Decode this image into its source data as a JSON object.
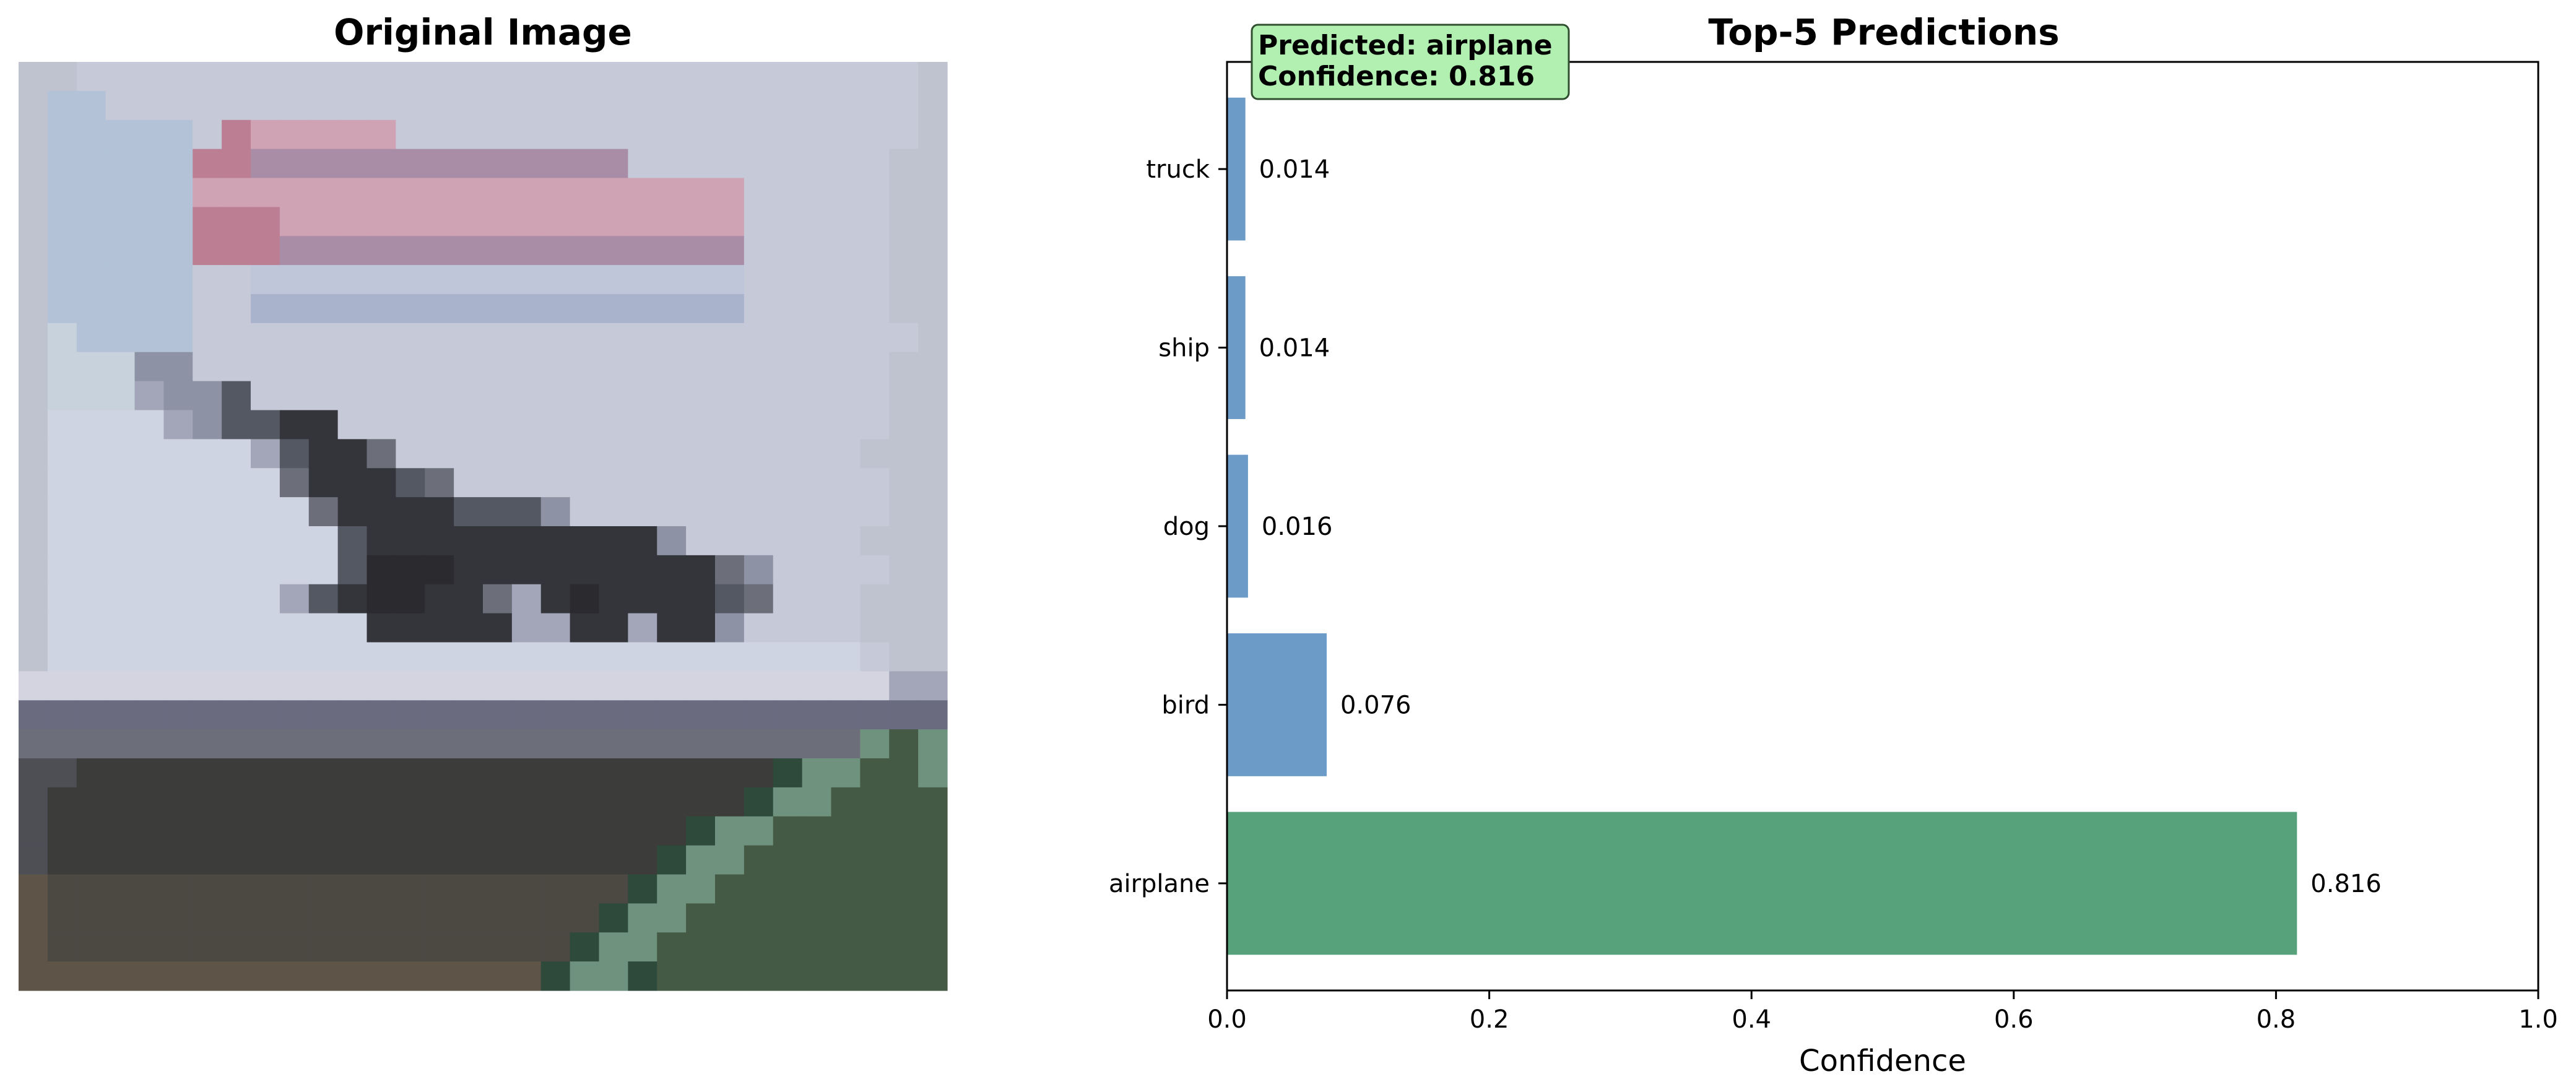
{
  "image_panel": {
    "title": "Original Image",
    "pixels": {
      "rows": 32,
      "cols": 32,
      "palette": {
        "a": "#bfc3cf",
        "b": "#b3c2d6",
        "c": "#c6c9d8",
        "d": "#d3d4e0",
        "e": "#d0a3b4",
        "f": "#bb7e93",
        "g": "#a98da6",
        "h": "#c0c6da",
        "i": "#a9b3cc",
        "j": "#c7d2dd",
        "k": "#cfd4e3",
        "l": "#8d93a4",
        "m": "#545862",
        "n": "#33353b",
        "o": "#2a2a2f",
        "p": "#6c6e7a",
        "q": "#a2a6b8",
        "r": "#6b6b80",
        "s": "#4d4f55",
        "t": "#3c3c3b",
        "u": "#3a3e3a",
        "v": "#4b4942",
        "w": "#2e4a3a",
        "x": "#6f927e",
        "y": "#445a45",
        "z": "#5e5548"
      },
      "grid": [
        "aaccccccccccccccccccccccccccccca",
        "abbcccccccccccccccccccccccccccca",
        "abbbbbcfeeeeecccccccccccccccccca",
        "abbbbbffgggggggggggggccccccccca",
        "abbbbbeeeeeeeeeeeeeeeeeeeccccca",
        "abbbbbfffeeeeeeeeeeeeeeeeccccca",
        "abbbbbfffggggggggggggggggccccca",
        "abbbbbcchhhhhhhhhhhhhhhhhccccca",
        "abbbbbcciiiiiiiiiiiiiiiiiccccca",
        "ajbbbbccccccccccccccccccccccccca",
        "ajjjllcccccccccccccccccccccccca",
        "ajjjqllmcccccccccccccccccccccca",
        "akkkkqlmmnnccccccccccccccccccca",
        "akkkkkkkqmnnpcccccccccccccccca",
        "akkkkkkkkpnnnmpccccccccccccccca",
        "akkkkkkkkkpnnnnmmmlccccccccccca",
        "akkkkkkkkkkmnnnnnnnnnnlcccccca",
        "akkkkkkkkkkmooonnnnnnnnnplcccca",
        "akkkkkkkkqmnoonnpqnonnnnmpccca",
        "akkkkkkkkkkknnnnnqqnnqnnlcccca",
        "akkkkkkkkkkkkkkkkkkkkkkkkkkkkca",
        "ddddddddddddddddddddddddddddddqq",
        "rrrrrrrrrrrrrrrrrrrrrrrrrrrrrrrr",
        "pppppppppppppppppppppppppppppxyx",
        "ssttttttttttttttttttttttttwxxyyx",
        "sttttttttttttttttttttttttwxxyyyy",
        "sttttttttttttttttttttttwxxyyyyyy",
        "stttttttttttttttttttttwxxyyyyyyy",
        "zvvvvvvvvvvvvvvvvvvvvwxxyyyyyyyy",
        "zvvvvvvvvvvvvvvvvvvvwxxyyyyyyyyy",
        "zvvvvvvvvvvvvvvvvvvwxxyyyyyyyyyy",
        "zzzzzzzzzzzzzzzzzzwxxwyyyyyyyyyy"
      ]
    }
  },
  "chart_data": {
    "type": "bar",
    "orientation": "horizontal",
    "title": "Top-5 Predictions",
    "xlabel": "Confidence",
    "ylabel": "",
    "xlim": [
      0,
      1.0
    ],
    "x_ticks": [
      "0.0",
      "0.2",
      "0.4",
      "0.6",
      "0.8",
      "1.0"
    ],
    "categories": [
      "airplane",
      "bird",
      "dog",
      "ship",
      "truck"
    ],
    "values": [
      0.816,
      0.076,
      0.016,
      0.014,
      0.014
    ],
    "value_labels": [
      "0.816",
      "0.076",
      "0.016",
      "0.014",
      "0.014"
    ],
    "bar_colors": [
      "#57a27a",
      "#6b9bc6",
      "#6b9bc6",
      "#6b9bc6",
      "#6b9bc6"
    ],
    "grid": false,
    "annotation": {
      "line1": "Predicted: airplane",
      "line2": "Confidence: 0.816",
      "background": "#b2f0b2",
      "border": "#2f4f2f",
      "placement": "top-left"
    }
  }
}
